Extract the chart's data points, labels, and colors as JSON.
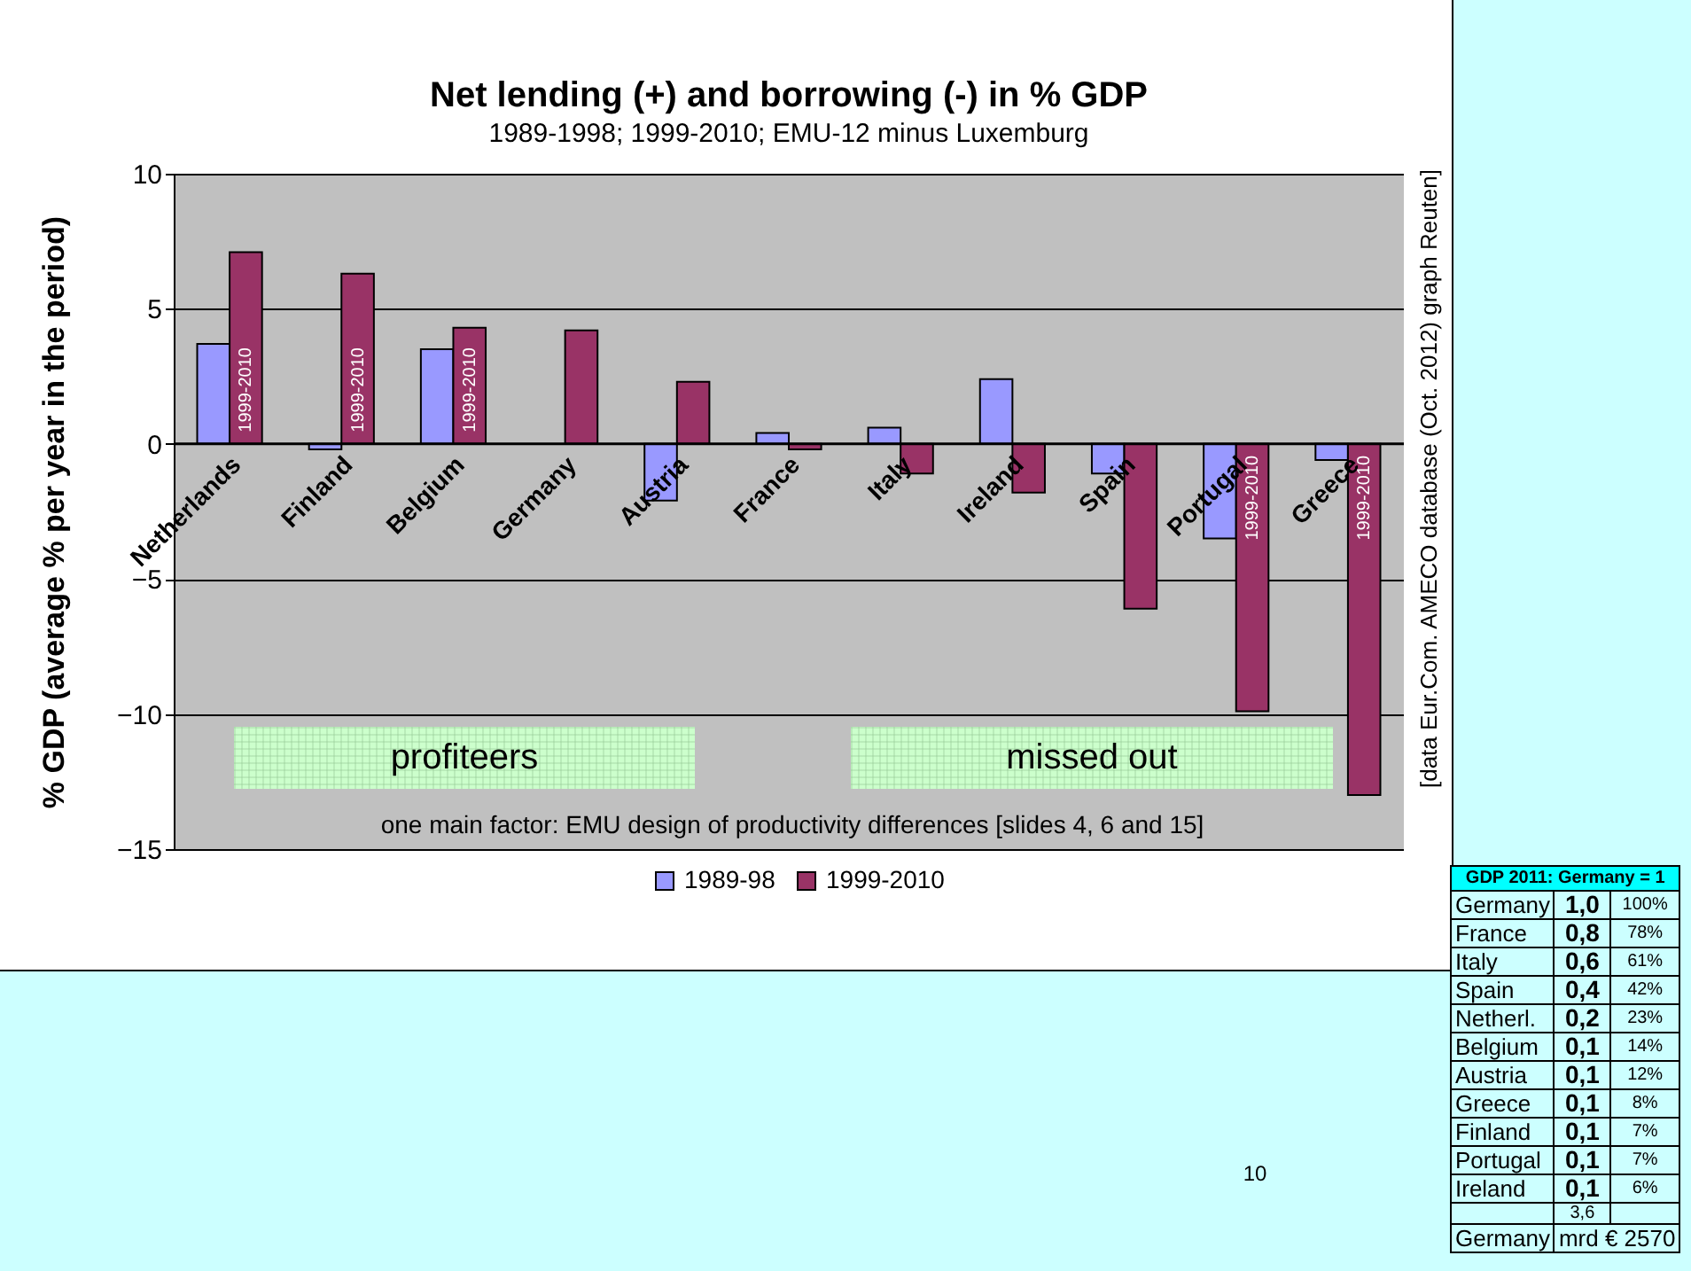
{
  "chart_data": [
    {
      "type": "bar",
      "title": "Net lending (+) and borrowing (-) in % GDP",
      "subtitle": "1989-1998; 1999-2010;  EMU-12 minus Luxemburg",
      "ylabel": "% GDP (average % per year in the period)",
      "categories": [
        "Netherlands",
        "Finland",
        "Belgium",
        "Germany",
        "Austria",
        "France",
        "Italy",
        "Ireland",
        "Spain",
        "Portugal",
        "Greece"
      ],
      "series": [
        {
          "name": "1989-98",
          "color": "#9999ff",
          "values": [
            3.7,
            -0.2,
            3.5,
            null,
            -2.1,
            0.4,
            0.6,
            2.4,
            -1.1,
            -3.5,
            -0.6
          ]
        },
        {
          "name": "1999-2010",
          "color": "#993366",
          "values": [
            7.1,
            6.3,
            4.3,
            4.2,
            2.3,
            -0.2,
            -1.1,
            -1.8,
            -6.1,
            -9.9,
            -13.0
          ]
        }
      ],
      "ylim": [
        -15,
        10
      ],
      "yticks": [
        -15,
        -10,
        -5,
        0,
        5,
        10
      ],
      "grid": "y",
      "legend": "bottom",
      "annotations": [
        {
          "text": "1999-2010",
          "x": "Netherlands",
          "y": 2
        },
        {
          "text": "1999-2010",
          "x": "Finland",
          "y": 2
        },
        {
          "text": "1999-2010",
          "x": "Belgium",
          "y": 2
        },
        {
          "text": "1999-2010",
          "x": "Portugal",
          "y": -2
        },
        {
          "text": "1999-2010",
          "x": "Greece",
          "y": -2
        },
        "profiteers",
        "missed out",
        "one main factor: EMU design of productivity differences [slides 4, 6 and 15]",
        "[data Eur.Com. AMECO database (Oct. 2012) graph Reuten]",
        "10"
      ]
    },
    {
      "type": "other",
      "title": "GDP 2011: Germany = 1",
      "annotations": [
        "Germany",
        "1,0",
        "100%",
        "France",
        "0,8",
        "78%",
        "Italy",
        "0,6",
        "61%",
        "Spain",
        "0,4",
        "42%",
        "Netherl.",
        "0,2",
        "23%",
        "Belgium",
        "0,1",
        "14%",
        "Austria",
        "0,1",
        "12%",
        "Greece",
        "0,1",
        "8%",
        "Finland",
        "0,1",
        "7%",
        "Portugal",
        "0,1",
        "7%",
        "Ireland",
        "0,1",
        "6%",
        "3,6",
        "Germany",
        "mrd € 2570"
      ]
    }
  ]
}
